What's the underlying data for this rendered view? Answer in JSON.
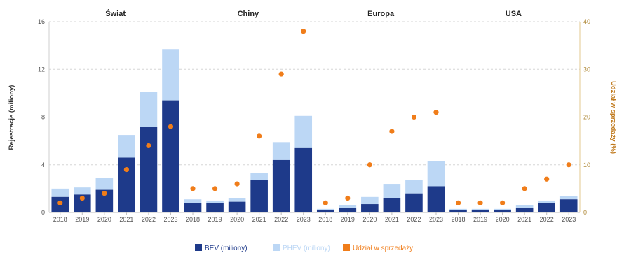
{
  "chart_data": {
    "type": "bar",
    "stacked": true,
    "panels": [
      {
        "title": "Świat",
        "categories": [
          "2018",
          "2019",
          "2020",
          "2021",
          "2022",
          "2023"
        ],
        "bev": [
          1.3,
          1.5,
          1.9,
          4.6,
          7.2,
          9.4
        ],
        "phev": [
          0.7,
          0.6,
          1.0,
          1.9,
          2.9,
          4.3
        ],
        "share": [
          2,
          3,
          4,
          9,
          14,
          18
        ]
      },
      {
        "title": "Chiny",
        "categories": [
          "2018",
          "2019",
          "2020",
          "2021",
          "2022",
          "2023"
        ],
        "bev": [
          0.8,
          0.8,
          0.9,
          2.7,
          4.4,
          5.4
        ],
        "phev": [
          0.3,
          0.2,
          0.3,
          0.6,
          1.5,
          2.7
        ],
        "share": [
          5,
          5,
          6,
          16,
          29,
          38
        ]
      },
      {
        "title": "Europa",
        "categories": [
          "2018",
          "2019",
          "2020",
          "2021",
          "2022",
          "2023"
        ],
        "bev": [
          0.2,
          0.4,
          0.7,
          1.2,
          1.6,
          2.2
        ],
        "phev": [
          0.1,
          0.2,
          0.6,
          1.2,
          1.1,
          2.1
        ],
        "share": [
          2,
          3,
          10,
          17,
          20,
          21
        ]
      },
      {
        "title": "USA",
        "categories": [
          "2018",
          "2019",
          "2020",
          "2021",
          "2022",
          "2023"
        ],
        "bev": [
          0.2,
          0.2,
          0.2,
          0.4,
          0.8,
          1.1
        ],
        "phev": [
          0.1,
          0.1,
          0.1,
          0.2,
          0.2,
          0.3
        ],
        "share": [
          2,
          2,
          2,
          5,
          7,
          10
        ]
      }
    ],
    "ylabel": "Rejestracje (miliony)",
    "y2label": "Udział w sprzedaży (%)",
    "ylim": [
      0,
      16
    ],
    "yticks": [
      0,
      4,
      8,
      12,
      16
    ],
    "y2lim": [
      0,
      40
    ],
    "y2ticks": [
      0,
      10,
      20,
      30,
      40
    ],
    "grid": true,
    "legend_position": "bottom-center",
    "legend": [
      {
        "label": "BEV (miliony)",
        "color": "#1e3a8a"
      },
      {
        "label": "PHEV (miliony)",
        "color": "#bcd7f5"
      },
      {
        "label": "Udział w sprzedaży",
        "color": "#f07d1a"
      }
    ],
    "colors": {
      "bev": "#1e3a8a",
      "phev": "#bcd7f5",
      "share": "#f07d1a"
    }
  }
}
